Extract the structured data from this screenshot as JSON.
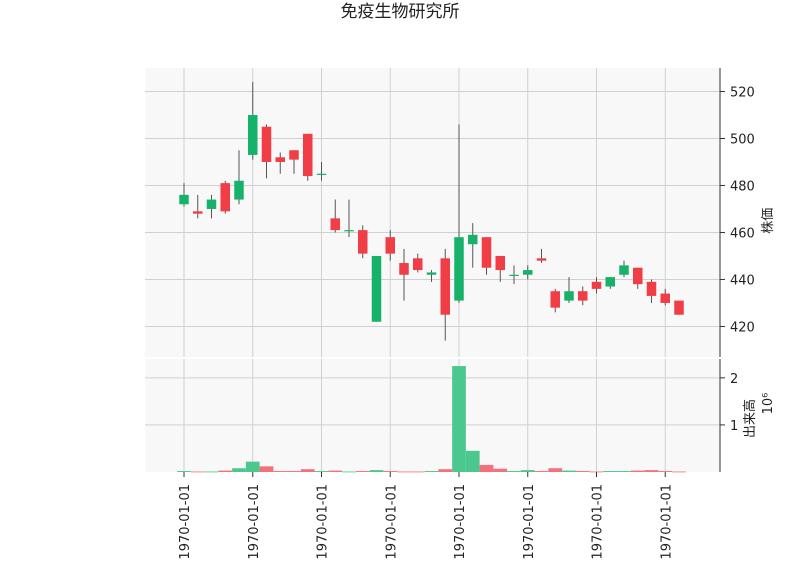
{
  "chart_data": {
    "type": "candlestick",
    "title": "免疫生物研究所",
    "x_tick_labels": [
      "1970-01-01",
      "1970-01-01",
      "1970-01-01",
      "1970-01-01",
      "1970-01-01",
      "1970-01-01",
      "1970-01-01",
      "1970-01-01"
    ],
    "x_tick_positions": [
      0,
      5,
      10,
      15,
      20,
      25,
      30,
      35
    ],
    "price_panel": {
      "ylabel": "株価",
      "ylim": [
        407,
        530
      ],
      "yticks": [
        420,
        440,
        460,
        480,
        500,
        520
      ]
    },
    "volume_panel": {
      "ylabel": "出来高",
      "scale_label": "10⁶",
      "ylim": [
        0,
        2.4
      ],
      "yticks": [
        1,
        2
      ]
    },
    "colors": {
      "up": "#17b26a",
      "down": "#f03d46",
      "up_volume": "#4cc78e",
      "down_volume": "#f5707a",
      "wick": "#555555",
      "grid": "#d0d0d0",
      "panel_bg": "#f8f8f8"
    },
    "candles": [
      {
        "open": 472,
        "high": 481,
        "low": 471,
        "close": 476,
        "volume": 0.02
      },
      {
        "open": 469,
        "high": 476,
        "low": 466,
        "close": 468,
        "volume": 0.01
      },
      {
        "open": 470,
        "high": 476,
        "low": 466,
        "close": 474,
        "volume": 0.01
      },
      {
        "open": 481,
        "high": 482,
        "low": 468,
        "close": 469,
        "volume": 0.03
      },
      {
        "open": 474,
        "high": 495,
        "low": 472,
        "close": 482,
        "volume": 0.08
      },
      {
        "open": 493,
        "high": 524,
        "low": 491,
        "close": 510,
        "volume": 0.22
      },
      {
        "open": 505,
        "high": 506,
        "low": 483,
        "close": 490,
        "volume": 0.12
      },
      {
        "open": 492,
        "high": 494,
        "low": 485,
        "close": 490,
        "volume": 0.02
      },
      {
        "open": 495,
        "high": 495,
        "low": 485,
        "close": 491,
        "volume": 0.02
      },
      {
        "open": 502,
        "high": 502,
        "low": 482,
        "close": 484,
        "volume": 0.06
      },
      {
        "open": 485,
        "high": 490,
        "low": 482,
        "close": 485,
        "volume": 0.02
      },
      {
        "open": 466,
        "high": 474,
        "low": 460,
        "close": 461,
        "volume": 0.03
      },
      {
        "open": 461,
        "high": 474,
        "low": 458,
        "close": 461,
        "volume": 0.01
      },
      {
        "open": 461,
        "high": 463,
        "low": 449,
        "close": 451,
        "volume": 0.02
      },
      {
        "open": 422,
        "high": 450,
        "low": 422,
        "close": 450,
        "volume": 0.04
      },
      {
        "open": 458,
        "high": 461,
        "low": 448,
        "close": 451,
        "volume": 0.02
      },
      {
        "open": 447,
        "high": 453,
        "low": 431,
        "close": 442,
        "volume": 0.01
      },
      {
        "open": 449,
        "high": 451,
        "low": 443,
        "close": 444,
        "volume": 0.01
      },
      {
        "open": 442,
        "high": 444,
        "low": 439,
        "close": 443,
        "volume": 0.02
      },
      {
        "open": 449,
        "high": 453,
        "low": 414,
        "close": 425,
        "volume": 0.06
      },
      {
        "open": 431,
        "high": 506,
        "low": 430,
        "close": 458,
        "volume": 2.25
      },
      {
        "open": 455,
        "high": 464,
        "low": 445,
        "close": 459,
        "volume": 0.45
      },
      {
        "open": 458,
        "high": 458,
        "low": 442,
        "close": 445,
        "volume": 0.15
      },
      {
        "open": 450,
        "high": 450,
        "low": 439,
        "close": 444,
        "volume": 0.07
      },
      {
        "open": 442,
        "high": 446,
        "low": 438,
        "close": 442,
        "volume": 0.02
      },
      {
        "open": 442,
        "high": 446,
        "low": 440,
        "close": 444,
        "volume": 0.04
      },
      {
        "open": 449,
        "high": 453,
        "low": 447,
        "close": 448,
        "volume": 0.02
      },
      {
        "open": 435,
        "high": 436,
        "low": 426,
        "close": 428,
        "volume": 0.08
      },
      {
        "open": 431,
        "high": 441,
        "low": 430,
        "close": 435,
        "volume": 0.03
      },
      {
        "open": 435,
        "high": 437,
        "low": 429,
        "close": 431,
        "volume": 0.02
      },
      {
        "open": 439,
        "high": 441,
        "low": 434,
        "close": 436,
        "volume": 0.01
      },
      {
        "open": 437,
        "high": 441,
        "low": 436,
        "close": 441,
        "volume": 0.02
      },
      {
        "open": 442,
        "high": 448,
        "low": 441,
        "close": 446,
        "volume": 0.02
      },
      {
        "open": 445,
        "high": 445,
        "low": 436,
        "close": 438,
        "volume": 0.03
      },
      {
        "open": 439,
        "high": 440,
        "low": 430,
        "close": 433,
        "volume": 0.04
      },
      {
        "open": 434,
        "high": 436,
        "low": 429,
        "close": 430,
        "volume": 0.02
      },
      {
        "open": 431,
        "high": 431,
        "low": 425,
        "close": 425,
        "volume": 0.01
      }
    ]
  }
}
